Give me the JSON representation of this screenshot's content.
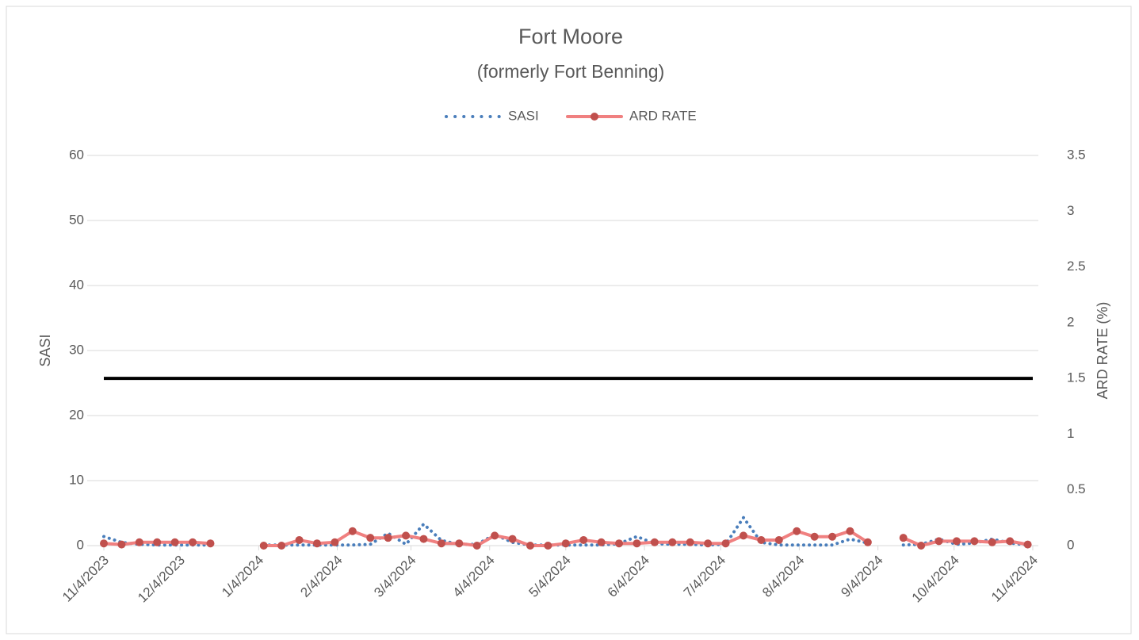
{
  "chart_data": {
    "type": "line",
    "title": "Fort Moore",
    "subtitle": "(formerly Fort Benning)",
    "y_label": "SASI",
    "y2_label": "ARD RATE (%)",
    "x": [
      "11/4/2023",
      "11/11/2023",
      "11/18/2023",
      "11/25/2023",
      "12/2/2023",
      "12/9/2023",
      "12/16/2023",
      "12/23/2023",
      "12/30/2023",
      "1/6/2024",
      "1/13/2024",
      "1/20/2024",
      "1/27/2024",
      "2/3/2024",
      "2/10/2024",
      "2/17/2024",
      "2/24/2024",
      "3/2/2024",
      "3/9/2024",
      "3/16/2024",
      "3/23/2024",
      "3/30/2024",
      "4/6/2024",
      "4/13/2024",
      "4/20/2024",
      "4/27/2024",
      "5/4/2024",
      "5/11/2024",
      "5/18/2024",
      "5/25/2024",
      "6/1/2024",
      "6/8/2024",
      "6/15/2024",
      "6/22/2024",
      "6/29/2024",
      "7/6/2024",
      "7/13/2024",
      "7/20/2024",
      "7/27/2024",
      "8/3/2024",
      "8/10/2024",
      "8/17/2024",
      "8/24/2024",
      "8/31/2024",
      "9/7/2024",
      "9/14/2024",
      "9/21/2024",
      "9/28/2024",
      "10/5/2024",
      "10/12/2024",
      "10/19/2024",
      "10/26/2024",
      "11/2/2024"
    ],
    "series": [
      {
        "name": "SASI",
        "color": "#4a7ebb",
        "style": "dotted",
        "axis": "y",
        "values": [
          1.4,
          0.5,
          0.2,
          0.1,
          0.1,
          0.1,
          0.1,
          null,
          null,
          0.1,
          0.1,
          0.1,
          0.1,
          0.1,
          0.1,
          0.2,
          1.9,
          0.2,
          3.3,
          0.8,
          0.2,
          0.2,
          1.7,
          0.5,
          0.1,
          0.1,
          0.1,
          0.1,
          0.1,
          0.3,
          1.4,
          0.3,
          0.2,
          0.2,
          0.1,
          0.2,
          4.3,
          0.5,
          0.1,
          0.1,
          0.1,
          0.1,
          1.0,
          0.4,
          null,
          0.1,
          0.2,
          1.0,
          0.2,
          0.4,
          1.0,
          0.4,
          0.1
        ]
      },
      {
        "name": "ARD RATE",
        "color": "#f08080",
        "marker_color": "#c0504d",
        "style": "solid",
        "axis": "y2",
        "values": [
          0.02,
          0.01,
          0.03,
          0.03,
          0.03,
          0.03,
          0.02,
          null,
          null,
          0,
          0,
          0.05,
          0.02,
          0.03,
          0.13,
          0.07,
          0.07,
          0.09,
          0.06,
          0.02,
          0.02,
          0,
          0.09,
          0.06,
          0,
          0,
          0.02,
          0.05,
          0.03,
          0.02,
          0.02,
          0.03,
          0.03,
          0.03,
          0.02,
          0.02,
          0.09,
          0.05,
          0.05,
          0.13,
          0.08,
          0.08,
          0.13,
          0.03,
          null,
          0.07,
          0,
          0.04,
          0.04,
          0.04,
          0.03,
          0.04,
          0.01
        ]
      }
    ],
    "reference_line": {
      "value": 1.5,
      "axis": "y2",
      "color": "#000000"
    },
    "xlim": [
      "11/4/2023",
      "11/4/2024"
    ],
    "xticks": [
      "11/4/2023",
      "12/4/2023",
      "1/4/2024",
      "2/4/2024",
      "3/4/2024",
      "4/4/2024",
      "5/4/2024",
      "6/4/2024",
      "7/4/2024",
      "8/4/2024",
      "9/4/2024",
      "10/4/2024",
      "11/4/2024"
    ],
    "ylim": [
      0,
      60
    ],
    "yticks": [
      0,
      10,
      20,
      30,
      40,
      50,
      60
    ],
    "y2lim": [
      0,
      3.5
    ],
    "y2ticks": [
      0,
      0.5,
      1,
      1.5,
      2,
      2.5,
      3,
      3.5
    ],
    "grid": true,
    "legend": "top"
  }
}
